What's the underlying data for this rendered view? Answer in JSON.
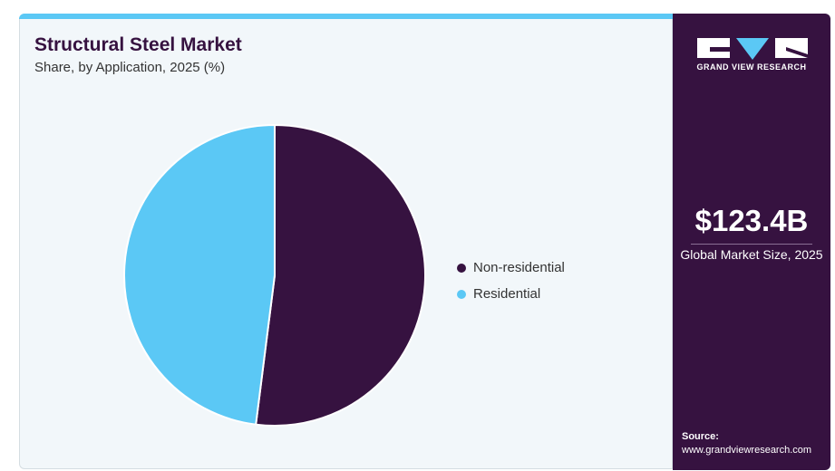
{
  "header": {
    "title": "Structural Steel Market",
    "subtitle": "Share, by Application, 2025 (%)"
  },
  "side": {
    "logo_text": "GRAND VIEW RESEARCH",
    "market_size": "$123.4B",
    "market_size_label": "Global Market Size, 2025",
    "source_label": "Source:",
    "source_url": "www.grandviewresearch.com"
  },
  "chart_data": {
    "type": "pie",
    "title": "Structural Steel Market",
    "subtitle": "Share, by Application, 2025 (%)",
    "categories": [
      "Non-residential",
      "Residential"
    ],
    "values": [
      52,
      48
    ],
    "colors": [
      "#361240",
      "#5bc8f5"
    ],
    "legend_position": "right"
  }
}
